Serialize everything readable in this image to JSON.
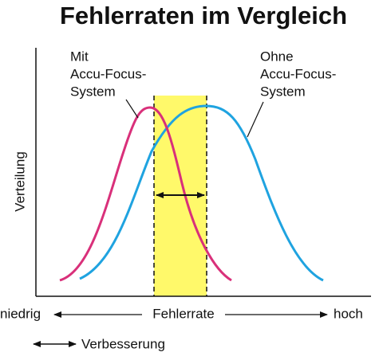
{
  "title": "Fehlerraten im Vergleich",
  "curve_labels": {
    "with": [
      "Mit",
      "Accu-Focus-",
      "System"
    ],
    "without": [
      "Ohne",
      "Accu-Focus-",
      "System"
    ]
  },
  "axes": {
    "y_label": "Verteilung",
    "x_label": "Fehlerrate",
    "x_low": "niedrig",
    "x_high": "hoch"
  },
  "legend": "Verbesserung"
}
